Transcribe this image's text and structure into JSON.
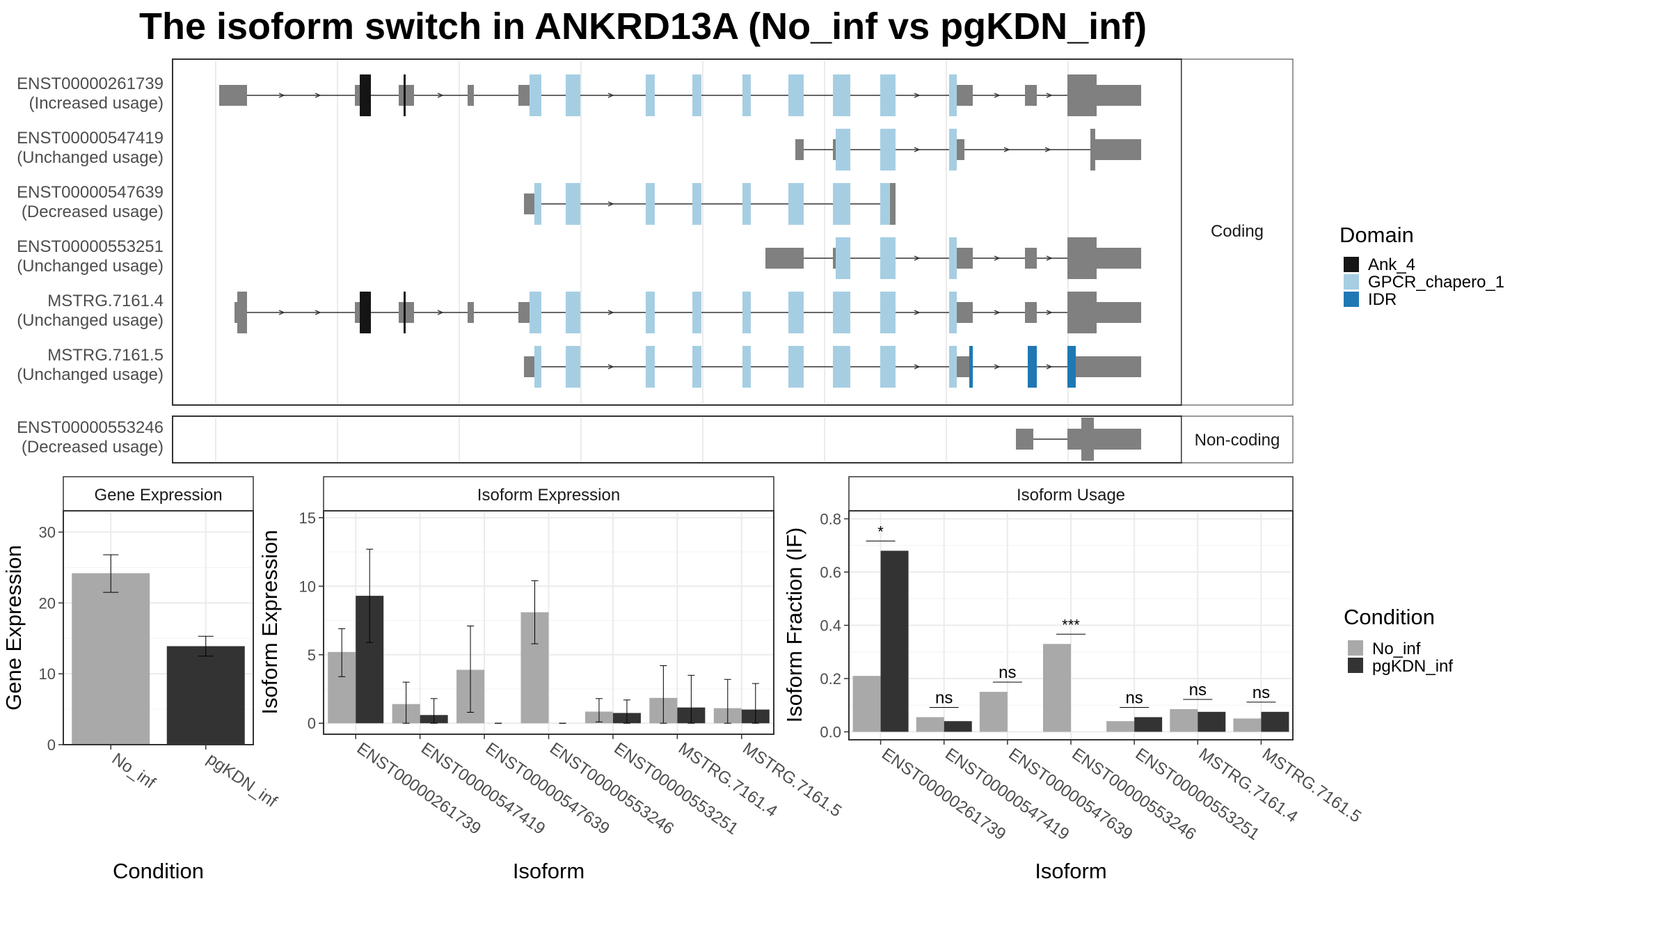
{
  "title": "The isoform switch in ANKRD13A (No_inf vs pgKDN_inf)",
  "colors": {
    "no_inf": "#a9a9a9",
    "pgkdn_inf": "#333333",
    "utr": "#808080",
    "ank": "#151515",
    "gpcr": "#a6cee3",
    "idr": "#1f78b4"
  },
  "structure": {
    "coding_label": "Coding",
    "noncoding_label": "Non-coding",
    "coding_isoforms": [
      {
        "name": "ENST00000261739",
        "status": "(Increased usage)"
      },
      {
        "name": "ENST00000547419",
        "status": "(Unchanged usage)"
      },
      {
        "name": "ENST00000547639",
        "status": "(Decreased usage)"
      },
      {
        "name": "ENST00000553251",
        "status": "(Unchanged usage)"
      },
      {
        "name": "MSTRG.7161.4",
        "status": "(Unchanged usage)"
      },
      {
        "name": "MSTRG.7161.5",
        "status": "(Unchanged usage)"
      }
    ],
    "noncoding_isoforms": [
      {
        "name": "ENST00000553246",
        "status": "(Decreased usage)"
      }
    ]
  },
  "domain_legend": {
    "title": "Domain",
    "items": [
      {
        "label": "Ank_4",
        "color": "#151515"
      },
      {
        "label": "GPCR_chapero_1",
        "color": "#a6cee3"
      },
      {
        "label": "IDR",
        "color": "#1f78b4"
      }
    ]
  },
  "condition_legend": {
    "title": "Condition",
    "items": [
      {
        "label": "No_inf",
        "color": "#a9a9a9"
      },
      {
        "label": "pgKDN_inf",
        "color": "#333333"
      }
    ]
  },
  "chart_data": [
    {
      "type": "bar",
      "title": "Gene Expression",
      "xlabel": "Condition",
      "ylabel": "Gene Expression",
      "ylim": [
        0,
        33
      ],
      "yticks": [
        0,
        10,
        20,
        30
      ],
      "categories": [
        "No_inf",
        "pgKDN_inf"
      ],
      "values": [
        24.2,
        13.9
      ],
      "errors": [
        [
          21.5,
          26.8
        ],
        [
          12.5,
          15.3
        ]
      ]
    },
    {
      "type": "bar",
      "title": "Isoform Expression",
      "xlabel": "Isoform",
      "ylabel": "Isoform Expression",
      "ylim": [
        -0.8,
        15.5
      ],
      "yticks": [
        0,
        5,
        10,
        15
      ],
      "categories": [
        "ENST00000261739",
        "ENST00000547419",
        "ENST00000547639",
        "ENST00000553246",
        "ENST00000553251",
        "MSTRG.7161.4",
        "MSTRG.7161.5"
      ],
      "series": [
        {
          "name": "No_inf",
          "values": [
            5.2,
            1.4,
            3.9,
            8.1,
            0.85,
            1.85,
            1.1
          ],
          "errors": [
            [
              3.4,
              6.9
            ],
            [
              0,
              3.0
            ],
            [
              0.8,
              7.1
            ],
            [
              5.8,
              10.4
            ],
            [
              0.1,
              1.8
            ],
            [
              0,
              4.2
            ],
            [
              0,
              3.2
            ]
          ]
        },
        {
          "name": "pgKDN_inf",
          "values": [
            9.3,
            0.6,
            0,
            0,
            0.75,
            1.15,
            1.0
          ],
          "errors": [
            [
              5.9,
              12.7
            ],
            [
              0,
              1.8
            ],
            [
              0,
              0
            ],
            [
              0,
              0
            ],
            [
              0,
              1.7
            ],
            [
              0,
              3.5
            ],
            [
              0,
              2.9
            ]
          ]
        }
      ]
    },
    {
      "type": "bar",
      "title": "Isoform Usage",
      "xlabel": "Isoform",
      "ylabel": "Isoform Fraction (IF)",
      "ylim": [
        -0.03,
        0.83
      ],
      "yticks": [
        0,
        0.2,
        0.4,
        0.6,
        0.8
      ],
      "ytick_labels": [
        "0.0",
        "0.2",
        "0.4",
        "0.6",
        "0.8"
      ],
      "categories": [
        "ENST00000261739",
        "ENST00000547419",
        "ENST00000547639",
        "ENST00000553246",
        "ENST00000553251",
        "MSTRG.7161.4",
        "MSTRG.7161.5"
      ],
      "series": [
        {
          "name": "No_inf",
          "values": [
            0.21,
            0.055,
            0.15,
            0.33,
            0.04,
            0.085,
            0.05
          ]
        },
        {
          "name": "pgKDN_inf",
          "values": [
            0.68,
            0.04,
            0,
            0,
            0.055,
            0.075,
            0.075
          ]
        }
      ],
      "significance": [
        "*",
        "ns",
        "ns",
        "***",
        "ns",
        "ns",
        "ns"
      ]
    }
  ]
}
